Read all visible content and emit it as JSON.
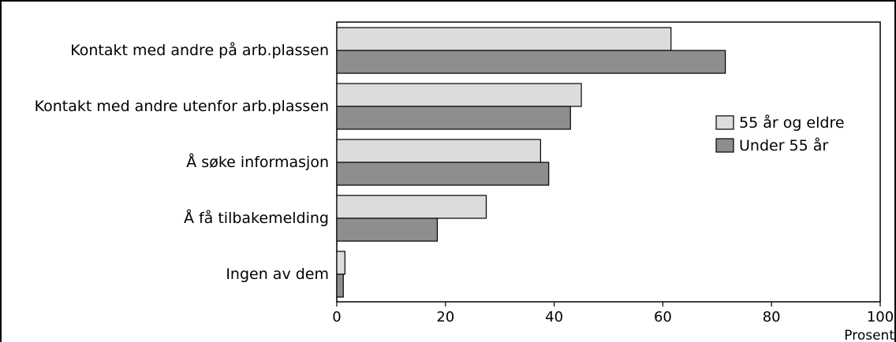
{
  "chart_data": {
    "type": "bar",
    "orientation": "horizontal",
    "categories": [
      "Kontakt med andre på arb.plassen",
      "Kontakt med andre utenfor arb.plassen",
      "Å søke informasjon",
      "Å få tilbakemelding",
      "Ingen av dem"
    ],
    "series": [
      {
        "name": "55 år og eldre",
        "values": [
          61.5,
          45,
          37.5,
          27.5,
          1.5
        ],
        "color": "#dcdcdc"
      },
      {
        "name": "Under 55 år",
        "values": [
          71.5,
          43,
          39,
          18.5,
          1.2
        ],
        "color": "#8e8e8e"
      }
    ],
    "xlim": [
      0,
      100
    ],
    "xticks": [
      "0",
      "20",
      "40",
      "60",
      "80",
      "100"
    ],
    "xlabel": "Prosent",
    "ylabel": "",
    "title": "",
    "grid": false,
    "legend_position": "right"
  }
}
